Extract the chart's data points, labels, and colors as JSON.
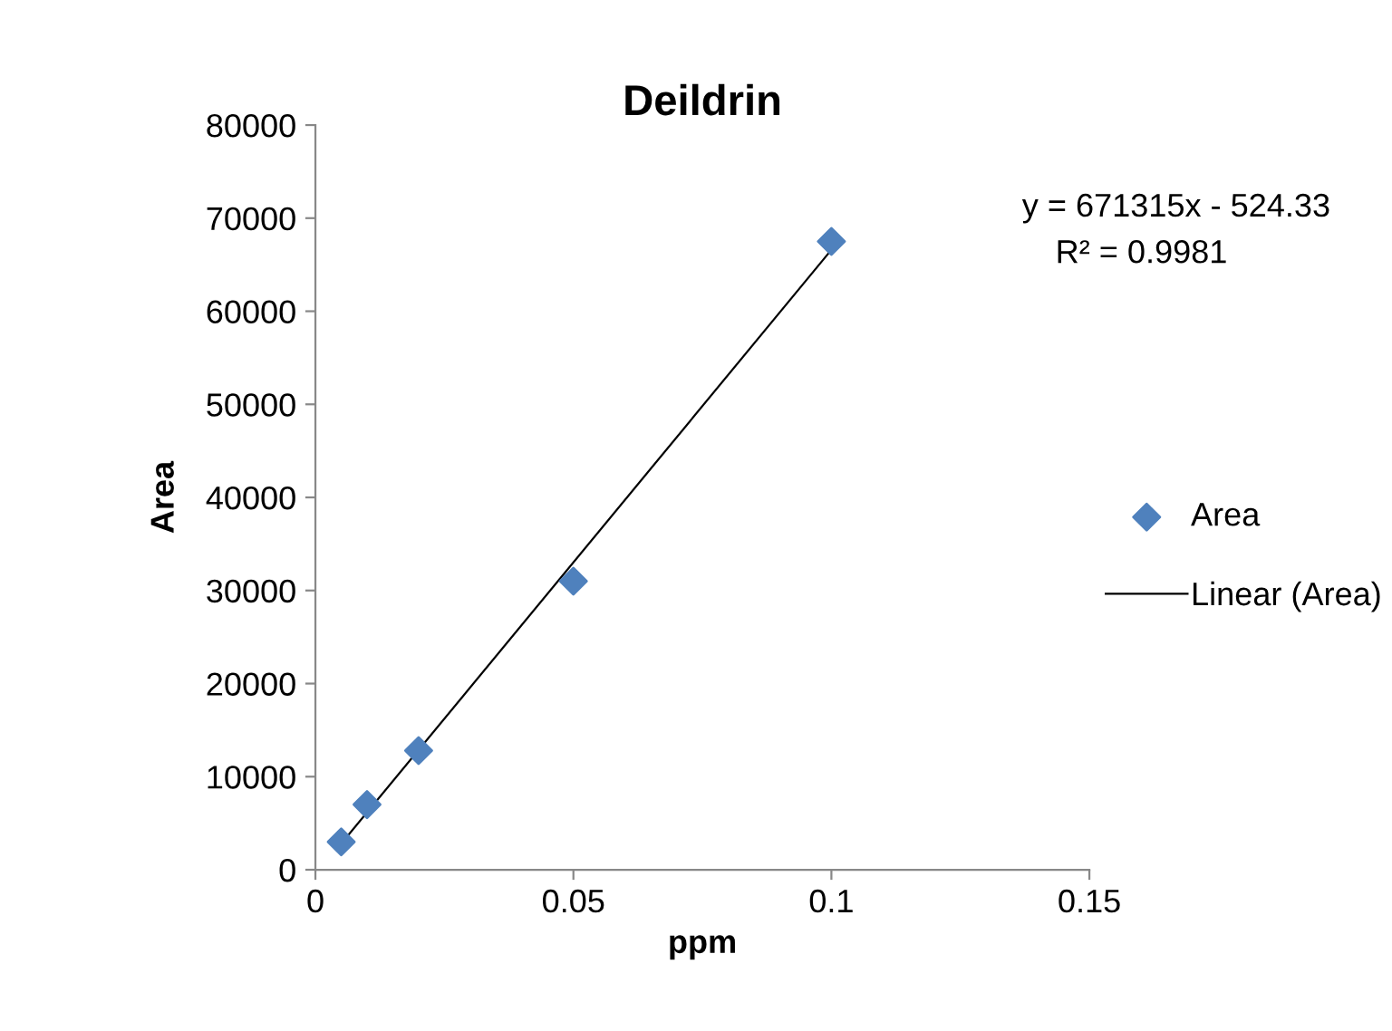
{
  "chart_data": {
    "type": "scatter",
    "title": "Deildrin",
    "xlabel": "ppm",
    "ylabel": "Area",
    "xlim": [
      0,
      0.15
    ],
    "xticks": [
      0,
      0.05,
      0.1,
      0.15
    ],
    "ylim": [
      0,
      80000
    ],
    "yticks": [
      0,
      10000,
      20000,
      30000,
      40000,
      50000,
      60000,
      70000,
      80000
    ],
    "grid": false,
    "legend": "right",
    "marker": "diamond",
    "annotations": [
      "y = 671315x - 524.33",
      "R² = 0.9981"
    ],
    "series": [
      {
        "name": "Area",
        "color": "#4f81bd",
        "x": [
          0.005,
          0.01,
          0.02,
          0.05,
          0.1
        ],
        "values": [
          3000,
          7000,
          12800,
          31000,
          67500
        ]
      },
      {
        "name": "Linear (Area)",
        "type": "line",
        "color": "#000000",
        "line_style": "solid",
        "marker": "none",
        "x": [
          0.005,
          0.1
        ],
        "values": [
          2800,
          66600
        ]
      }
    ]
  }
}
